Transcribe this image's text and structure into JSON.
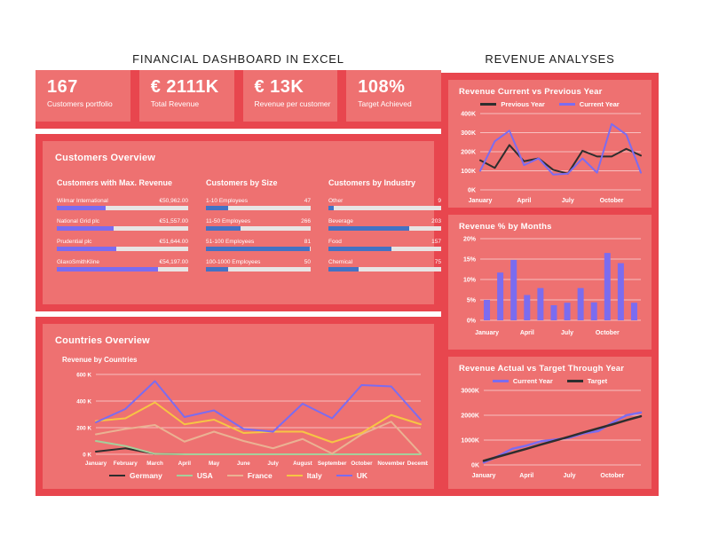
{
  "page": {
    "title_left": "FINANCIAL DASHBOARD IN EXCEL",
    "title_right": "REVENUE ANALYSES"
  },
  "colors": {
    "panel_border": "#e8464e",
    "panel_background": "#ee7171",
    "accent_purple": "#7b6cf0",
    "accent_blue": "#4472c4",
    "bar_track": "#e8e4e4",
    "text_white": "#ffffff",
    "title_text": "#1c1c1c"
  },
  "kpis": [
    {
      "value": "167",
      "label": "Customers portfolio"
    },
    {
      "value": "€ 2111K",
      "label": "Total Revenue"
    },
    {
      "value": "€ 13K",
      "label": "Revenue per customer"
    },
    {
      "value": "108%",
      "label": "Target Achieved"
    }
  ],
  "customers_overview": {
    "title": "Customers Overview",
    "groups": [
      {
        "title": "Customers with Max. Revenue",
        "bar_color": "#7b6cf0",
        "rows": [
          {
            "label": "Wilmar International",
            "value": "€50,962.00",
            "pct": 37
          },
          {
            "label": "National Grid plc",
            "value": "€51,557.00",
            "pct": 43
          },
          {
            "label": "Prudential plc",
            "value": "€51,644.00",
            "pct": 45
          },
          {
            "label": "GlaxoSmithKline",
            "value": "€54,197.00",
            "pct": 77
          }
        ]
      },
      {
        "title": "Customers by Size",
        "bar_color": "#4472c4",
        "rows": [
          {
            "label": "1-10 Employees",
            "value": "47",
            "pct": 21
          },
          {
            "label": "11-50 Employees",
            "value": "266",
            "pct": 33
          },
          {
            "label": "51-100 Employees",
            "value": "81",
            "pct": 99
          },
          {
            "label": "100-1000 Employees",
            "value": "50",
            "pct": 21
          }
        ]
      },
      {
        "title": "Customers by Industry",
        "bar_color": "#4472c4",
        "rows": [
          {
            "label": "Other",
            "value": "9",
            "pct": 5
          },
          {
            "label": "Beverage",
            "value": "203",
            "pct": 72
          },
          {
            "label": "Food",
            "value": "157",
            "pct": 56
          },
          {
            "label": "Chemical",
            "value": "75",
            "pct": 27
          }
        ]
      }
    ]
  },
  "countries_overview": {
    "title": "Countries Overview"
  },
  "chart_data": [
    {
      "type": "line",
      "title": "Revenue by Countries",
      "categories": [
        "January",
        "February",
        "March",
        "April",
        "May",
        "June",
        "July",
        "August",
        "September",
        "October",
        "November",
        "December"
      ],
      "series": [
        {
          "name": "Germany",
          "color": "#2e2e2e",
          "values": [
            20,
            45,
            3,
            0,
            0,
            0,
            0,
            0,
            0,
            0,
            0,
            0
          ]
        },
        {
          "name": "USA",
          "color": "#a5cf9b",
          "values": [
            100,
            62,
            3,
            0,
            0,
            0,
            0,
            0,
            0,
            0,
            0,
            0
          ]
        },
        {
          "name": "France",
          "color": "#eab293",
          "values": [
            150,
            190,
            220,
            95,
            170,
            100,
            45,
            115,
            5,
            150,
            245,
            5
          ]
        },
        {
          "name": "Italy",
          "color": "#f6c544",
          "values": [
            250,
            270,
            390,
            225,
            260,
            160,
            170,
            170,
            90,
            160,
            295,
            225
          ]
        },
        {
          "name": "UK",
          "color": "#7b6cf0",
          "values": [
            240,
            340,
            550,
            280,
            330,
            190,
            170,
            380,
            270,
            520,
            510,
            260
          ]
        }
      ],
      "ylim": [
        0,
        600
      ],
      "yticks": [
        {
          "value": 0,
          "label": "0 K"
        },
        {
          "value": 200,
          "label": "200 K"
        },
        {
          "value": 400,
          "label": "400 K"
        },
        {
          "value": 600,
          "label": "600 K"
        }
      ],
      "x_tick_indices": [
        0,
        1,
        2,
        3,
        4,
        5,
        6,
        7,
        8,
        9,
        10,
        11
      ],
      "legend_position": "bottom",
      "grid": true
    },
    {
      "type": "line",
      "title": "Revenue Current vs Previous Year",
      "categories": [
        "January",
        "February",
        "March",
        "April",
        "May",
        "June",
        "July",
        "August",
        "September",
        "October",
        "November",
        "December"
      ],
      "series": [
        {
          "name": "Previous Year",
          "color": "#2e2e2e",
          "values": [
            155,
            115,
            235,
            150,
            165,
            105,
            85,
            205,
            175,
            175,
            215,
            180
          ]
        },
        {
          "name": "Current Year",
          "color": "#7b6cf0",
          "values": [
            100,
            255,
            310,
            130,
            165,
            80,
            85,
            165,
            90,
            345,
            290,
            90
          ]
        }
      ],
      "ylim": [
        0,
        400
      ],
      "yticks": [
        {
          "value": 0,
          "label": "0K"
        },
        {
          "value": 100,
          "label": "100K"
        },
        {
          "value": 200,
          "label": "200K"
        },
        {
          "value": 300,
          "label": "300K"
        },
        {
          "value": 400,
          "label": "400K"
        }
      ],
      "x_tick_indices": [
        0,
        3,
        6,
        9
      ],
      "legend_position": "top",
      "grid": true
    },
    {
      "type": "bar",
      "title": "Revenue % by Months",
      "categories": [
        "January",
        "February",
        "March",
        "April",
        "May",
        "June",
        "July",
        "August",
        "September",
        "October",
        "November",
        "December"
      ],
      "values": [
        5,
        11.7,
        14.8,
        6.2,
        7.9,
        3.7,
        4.3,
        7.9,
        4.4,
        16.5,
        14,
        4.3
      ],
      "bar_color": "#7b6cf0",
      "ylim": [
        0,
        20
      ],
      "yticks": [
        {
          "value": 0,
          "label": "0%"
        },
        {
          "value": 5,
          "label": "5%"
        },
        {
          "value": 10,
          "label": "10%"
        },
        {
          "value": 15,
          "label": "15%"
        },
        {
          "value": 20,
          "label": "20%"
        }
      ],
      "x_tick_indices": [
        0,
        3,
        6,
        9
      ],
      "grid": true
    },
    {
      "type": "line",
      "title": "Revenue Actual vs Target Through Year",
      "categories": [
        "January",
        "February",
        "March",
        "April",
        "May",
        "June",
        "July",
        "August",
        "September",
        "October",
        "November",
        "December"
      ],
      "series": [
        {
          "name": "Current Year",
          "color": "#7b6cf0",
          "values": [
            100,
            350,
            650,
            780,
            950,
            1020,
            1100,
            1270,
            1360,
            1700,
            2000,
            2110
          ]
        },
        {
          "name": "Target",
          "color": "#2e2e2e",
          "values": [
            165,
            330,
            490,
            650,
            820,
            980,
            1140,
            1310,
            1470,
            1630,
            1800,
            1960
          ]
        }
      ],
      "ylim": [
        0,
        3000
      ],
      "yticks": [
        {
          "value": 0,
          "label": "0K"
        },
        {
          "value": 1000,
          "label": "1000K"
        },
        {
          "value": 2000,
          "label": "2000K"
        },
        {
          "value": 3000,
          "label": "3000K"
        }
      ],
      "x_tick_indices": [
        0,
        3,
        6,
        9
      ],
      "legend_position": "top",
      "grid": true
    }
  ]
}
